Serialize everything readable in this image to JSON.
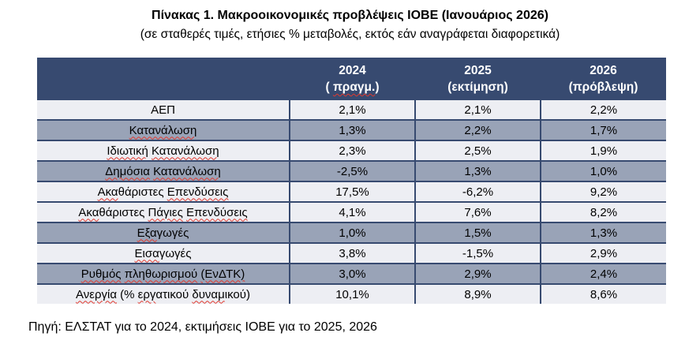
{
  "title": "Πίνακας 1. Μακροοικονομικές προβλέψεις ΙΟΒΕ (Ιανουάριος 2026)",
  "subtitle": "(σε σταθερές τιμές, ετήσιες % μεταβολές, εκτός εάν αναγράφεται διαφορετικά)",
  "source_note": "Πηγή: ΕΛΣΤΑΤ για το 2024, εκτιμήσεις ΙΟΒΕ για το 2025, 2026",
  "colors": {
    "header_bg": "#374A70",
    "header_text": "#FFFFFF",
    "row_light": "#EDEEF3",
    "row_shaded": "#99A3B7",
    "grid_line": "#374A70",
    "spellcheck_squiggle": "#E0392F"
  },
  "table": {
    "columns": [
      {
        "year": "2024",
        "sub": "( πραγμ.)",
        "sub_parts": [
          {
            "t": "( ",
            "sq": false
          },
          {
            "t": "πραγμ.",
            "sq": true
          },
          {
            "t": ")",
            "sq": false
          }
        ]
      },
      {
        "year": "2025",
        "sub": "(εκτίμηση)",
        "sub_parts": [
          {
            "t": "(εκτίμηση)",
            "sq": false
          }
        ]
      },
      {
        "year": "2026",
        "sub": "(πρόβλεψη)",
        "sub_parts": [
          {
            "t": "(πρόβλεψη)",
            "sq": false
          }
        ]
      }
    ],
    "rows": [
      {
        "label": "ΑΕΠ",
        "shaded": false,
        "values": [
          "2,1%",
          "2,1%",
          "2,2%"
        ],
        "label_parts": [
          {
            "t": "ΑΕΠ",
            "sq": false
          }
        ]
      },
      {
        "label": "Κατανάλωση",
        "shaded": true,
        "values": [
          "1,3%",
          "2,2%",
          "1,7%"
        ],
        "label_parts": [
          {
            "t": "Κατανάλωση",
            "sq": true
          }
        ]
      },
      {
        "label": "Ιδιωτική Κατανάλωση",
        "shaded": false,
        "values": [
          "2,3%",
          "2,5%",
          "1,9%"
        ],
        "label_parts": [
          {
            "t": "Ιδιωτική",
            "sq": true
          },
          {
            "t": " ",
            "sq": false
          },
          {
            "t": "Κατανάλωση",
            "sq": true
          }
        ]
      },
      {
        "label": "Δημόσια Κατανάλωση",
        "shaded": true,
        "values": [
          "-2,5%",
          "1,3%",
          "1,0%"
        ],
        "label_parts": [
          {
            "t": "Δημόσια",
            "sq": true
          },
          {
            "t": " ",
            "sq": false
          },
          {
            "t": "Κατανάλωση",
            "sq": true
          }
        ]
      },
      {
        "label": "Ακαθάριστες Επενδύσεις",
        "shaded": false,
        "values": [
          "17,5%",
          "-6,2%",
          "9,2%"
        ],
        "label_parts": [
          {
            "t": "Ακα",
            "sq": true
          },
          {
            "t": "θάριστες ",
            "sq": false
          },
          {
            "t": "Επενδύσεις",
            "sq": true
          }
        ]
      },
      {
        "label": "Ακαθάριστες Πάγιες Επενδύσεις",
        "shaded": false,
        "values": [
          "4,1%",
          "7,6%",
          "8,2%"
        ],
        "label_parts": [
          {
            "t": "Ακα",
            "sq": true
          },
          {
            "t": "θάριστες ",
            "sq": false
          },
          {
            "t": "Πάγιες",
            "sq": true
          },
          {
            "t": " ",
            "sq": false
          },
          {
            "t": "Επενδύσεις",
            "sq": true
          }
        ]
      },
      {
        "label": "Εξαγωγές",
        "shaded": true,
        "values": [
          "1,0%",
          "1,5%",
          "1,3%"
        ],
        "label_parts": [
          {
            "t": "Εξα",
            "sq": true
          },
          {
            "t": "γωγές",
            "sq": false
          }
        ]
      },
      {
        "label": "Εισαγωγές",
        "shaded": false,
        "values": [
          "3,8%",
          "-1,5%",
          "2,9%"
        ],
        "label_parts": [
          {
            "t": "Εισα",
            "sq": true
          },
          {
            "t": "γωγές",
            "sq": false
          }
        ]
      },
      {
        "label": "Ρυθμός πληθωρισμού (ΕνΔΤΚ)",
        "shaded": true,
        "values": [
          "3,0%",
          "2,9%",
          "2,4%"
        ],
        "label_parts": [
          {
            "t": "Ρυθμός",
            "sq": true
          },
          {
            "t": " ",
            "sq": false
          },
          {
            "t": "πληθωρισμού",
            "sq": true
          },
          {
            "t": " ",
            "sq": false
          },
          {
            "t": "(ΕνΔΤΚ)",
            "sq": true
          }
        ]
      },
      {
        "label": "Ανεργία (% εργατικού δυναμικού)",
        "shaded": false,
        "values": [
          "10,1%",
          "8,9%",
          "8,6%"
        ],
        "label_parts": [
          {
            "t": "Ανεργία",
            "sq": true
          },
          {
            "t": " (% ",
            "sq": false
          },
          {
            "t": "εργ",
            "sq": true
          },
          {
            "t": "ατικού ",
            "sq": false
          },
          {
            "t": "δυναμ",
            "sq": true
          },
          {
            "t": "ικού)",
            "sq": false
          }
        ]
      }
    ]
  }
}
